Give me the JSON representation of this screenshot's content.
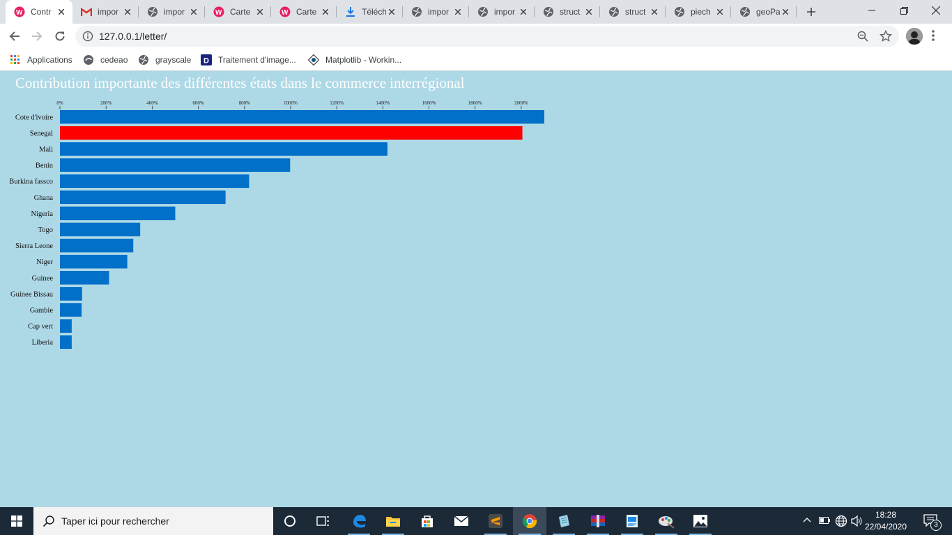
{
  "browser": {
    "tabs": [
      {
        "title": "Contr",
        "icon": "wamp-icon",
        "active": true
      },
      {
        "title": "impor",
        "icon": "gmail-icon"
      },
      {
        "title": "impor",
        "icon": "globe-icon"
      },
      {
        "title": "Carte",
        "icon": "wamp-icon"
      },
      {
        "title": "Carte",
        "icon": "wamp-icon"
      },
      {
        "title": "Téléch",
        "icon": "download-icon"
      },
      {
        "title": "impor",
        "icon": "globe-icon"
      },
      {
        "title": "impor",
        "icon": "globe-icon"
      },
      {
        "title": "struct",
        "icon": "globe-icon"
      },
      {
        "title": "struct",
        "icon": "globe-icon"
      },
      {
        "title": "piech",
        "icon": "globe-icon"
      },
      {
        "title": "geoPa",
        "icon": "globe-icon"
      }
    ],
    "url": "127.0.0.1/letter/",
    "bookmarks": [
      {
        "label": "Applications",
        "icon": "apps-grid-icon"
      },
      {
        "label": "cedeao",
        "icon": "custom-favicon-icon"
      },
      {
        "label": "grayscale",
        "icon": "globe-icon"
      },
      {
        "label": "Traitement d'image...",
        "icon": "d-favicon-icon"
      },
      {
        "label": "Matplotlib - Workin...",
        "icon": "matplotlib-icon"
      }
    ]
  },
  "page": {
    "title": "Contribution importante des différentes états dans le commerce interrégional"
  },
  "chart_data": {
    "type": "bar",
    "orientation": "horizontal",
    "title": "Contribution importante des différentes états dans le commerce interrégional",
    "xlabel": "",
    "ylabel": "",
    "xlim": [
      0,
      2100
    ],
    "x_ticks": [
      "0%",
      "200%",
      "400%",
      "600%",
      "800%",
      "1000%",
      "1200%",
      "1400%",
      "1600%",
      "1800%",
      "2000%"
    ],
    "x_axis_position": "top",
    "grid": false,
    "categories": [
      "Cote d'ivoire",
      "Senegal",
      "Mali",
      "Benin",
      "Burkina fassco",
      "Ghana",
      "Nigeria",
      "Togo",
      "Sierra Leone",
      "Niger",
      "Guinee",
      "Guinee Bissau",
      "Gambie",
      "Cap vert",
      "Liberia"
    ],
    "values": [
      2100,
      2005,
      1420,
      998,
      820,
      718,
      500,
      348,
      318,
      292,
      213,
      96,
      94,
      51,
      51
    ],
    "bar_color": "#0070c9",
    "highlight_color": "#ff0000",
    "highlight_category": "Senegal"
  },
  "taskbar": {
    "search_placeholder": "Taper ici pour rechercher",
    "time": "18:28",
    "date": "22/04/2020",
    "notification_count": "3",
    "apps": [
      {
        "name": "cortana-icon"
      },
      {
        "name": "task-view-icon"
      },
      {
        "name": "edge-icon"
      },
      {
        "name": "file-explorer-icon"
      },
      {
        "name": "store-icon"
      },
      {
        "name": "mail-icon"
      },
      {
        "name": "sublime-text-icon"
      },
      {
        "name": "chrome-icon"
      },
      {
        "name": "notepad-icon"
      },
      {
        "name": "winrar-icon"
      },
      {
        "name": "document-app-icon"
      },
      {
        "name": "paint-icon"
      },
      {
        "name": "photos-icon"
      }
    ]
  }
}
